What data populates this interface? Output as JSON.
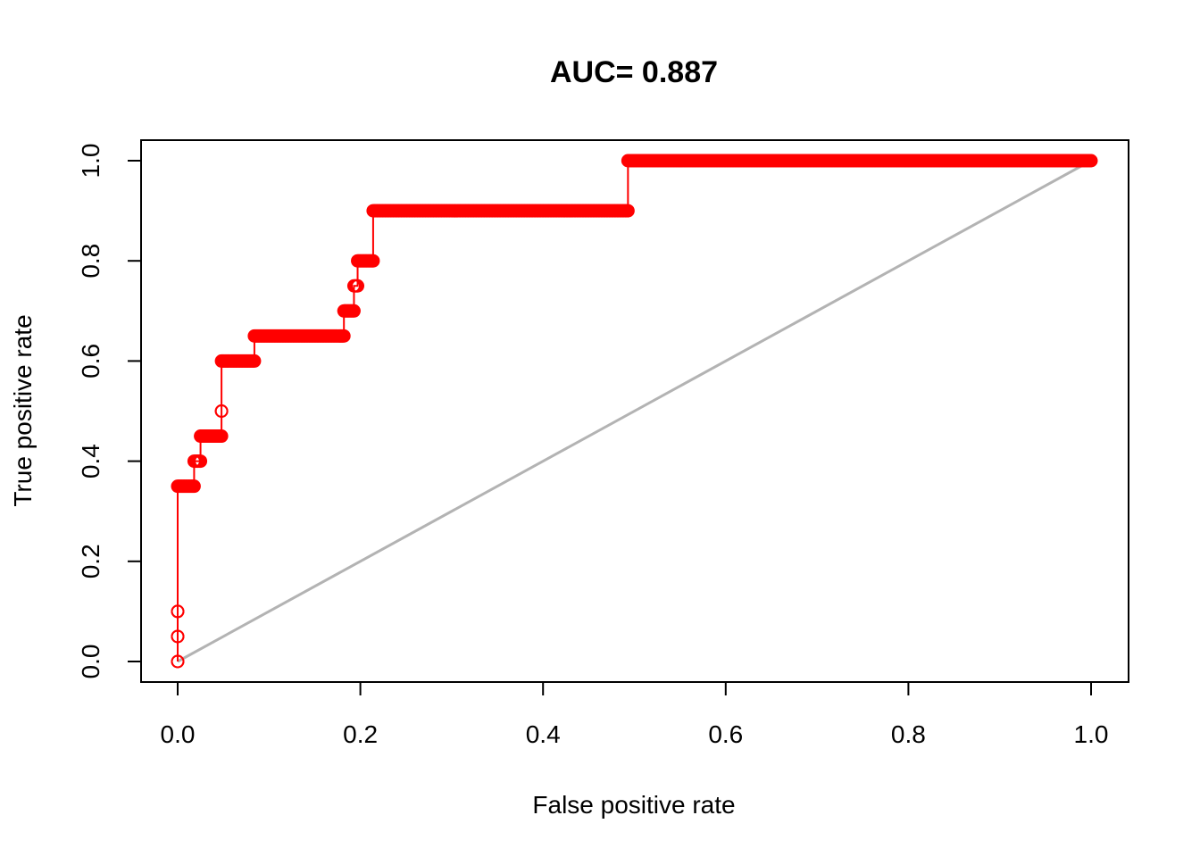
{
  "chart_data": {
    "type": "line",
    "title": "AUC= 0.887",
    "xlabel": "False positive rate",
    "ylabel": "True positive rate",
    "xlim": [
      0,
      1
    ],
    "ylim": [
      0,
      1
    ],
    "x_ticks": [
      "0.0",
      "0.2",
      "0.4",
      "0.6",
      "0.8",
      "1.0"
    ],
    "y_ticks": [
      "0.0",
      "0.2",
      "0.4",
      "0.6",
      "0.8",
      "1.0"
    ],
    "grid": false,
    "legend": "none",
    "series": [
      {
        "style": "step-line-with-open-circles",
        "color": "#ff0000",
        "segments": [
          {
            "y": 0.0,
            "x_from": 0.0,
            "x_to": 0.0
          },
          {
            "y": 0.05,
            "x_from": 0.0,
            "x_to": 0.0
          },
          {
            "y": 0.1,
            "x_from": 0.0,
            "x_to": 0.0
          },
          {
            "y": 0.35,
            "x_from": 0.0,
            "x_to": 0.018
          },
          {
            "y": 0.4,
            "x_from": 0.018,
            "x_to": 0.025
          },
          {
            "y": 0.45,
            "x_from": 0.025,
            "x_to": 0.048
          },
          {
            "y": 0.5,
            "x_from": 0.048,
            "x_to": 0.048
          },
          {
            "y": 0.6,
            "x_from": 0.048,
            "x_to": 0.084
          },
          {
            "y": 0.65,
            "x_from": 0.084,
            "x_to": 0.182
          },
          {
            "y": 0.7,
            "x_from": 0.182,
            "x_to": 0.193
          },
          {
            "y": 0.75,
            "x_from": 0.193,
            "x_to": 0.197
          },
          {
            "y": 0.8,
            "x_from": 0.197,
            "x_to": 0.214
          },
          {
            "y": 0.9,
            "x_from": 0.214,
            "x_to": 0.493
          },
          {
            "y": 1.0,
            "x_from": 0.493,
            "x_to": 1.0
          }
        ]
      },
      {
        "style": "diagonal-reference",
        "color": "#b3b3b3",
        "x": [
          0,
          1
        ],
        "y": [
          0,
          1
        ]
      }
    ]
  }
}
